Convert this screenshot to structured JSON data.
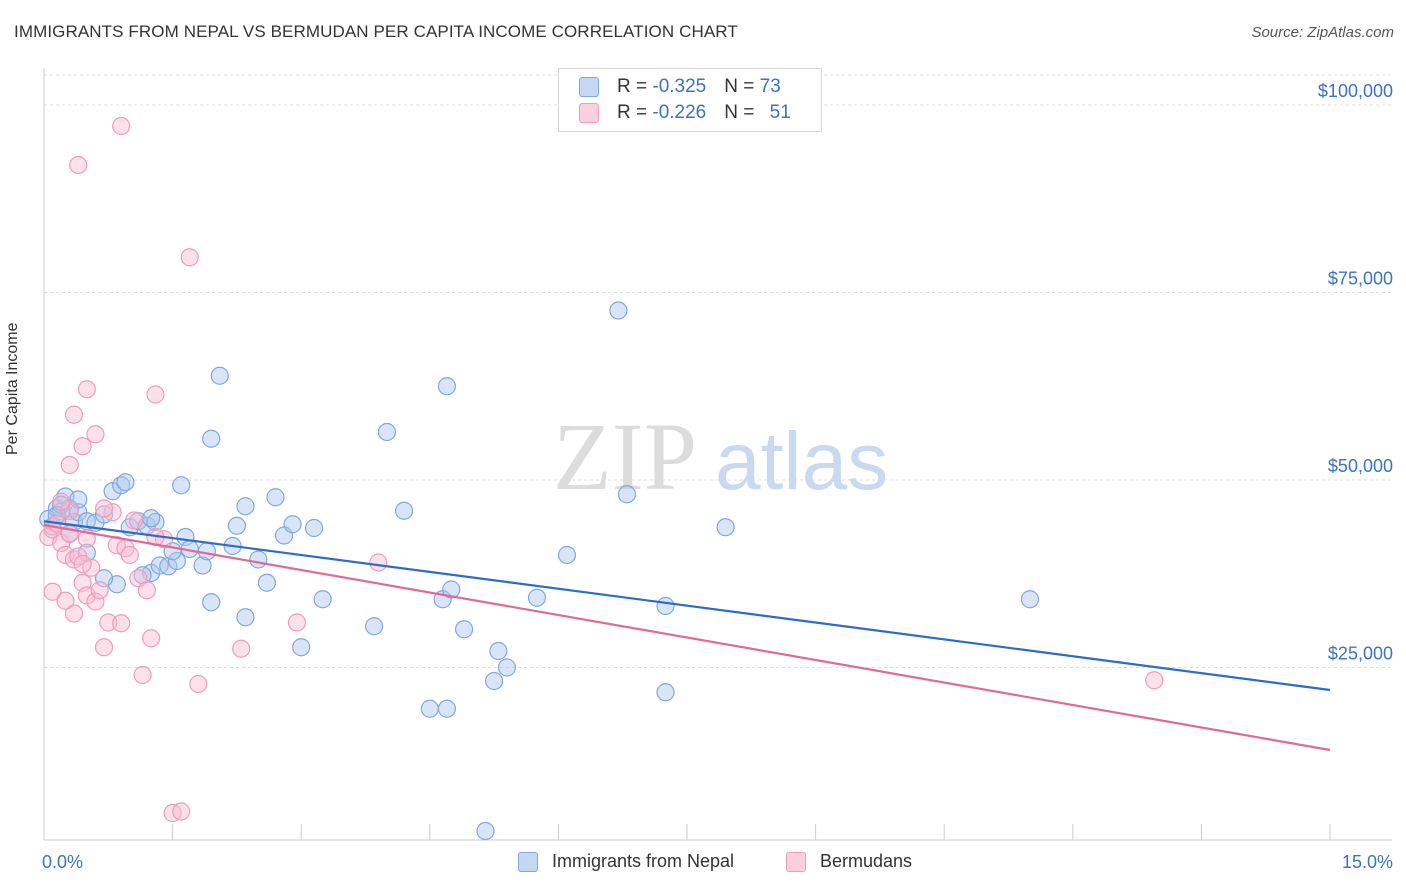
{
  "title": "IMMIGRANTS FROM NEPAL VS BERMUDAN PER CAPITA INCOME CORRELATION CHART",
  "source": "Source: ZipAtlas.com",
  "watermark": {
    "zip": "ZIP",
    "atlas": "atlas"
  },
  "legend": {
    "rows": [
      {
        "r_label": "R = ",
        "r_value": "-0.325",
        "n_label": "N = ",
        "n_value": "73",
        "color": "#7fa8e0"
      },
      {
        "r_label": "R = ",
        "r_value": "-0.226",
        "n_label": "N = ",
        "n_value": "51",
        "color": "#f29bb7"
      }
    ]
  },
  "bottom_legend": [
    {
      "label": "Immigrants from Nepal",
      "color": "#7fa8e0"
    },
    {
      "label": "Bermudans",
      "color": "#f29bb7"
    }
  ],
  "x_axis": {
    "min_label": "0.0%",
    "max_label": "15.0%"
  },
  "chart_data": {
    "type": "scatter",
    "ylabel": "Per Capita Income",
    "xlim": [
      0,
      15
    ],
    "ylim": [
      2000,
      104000
    ],
    "y_ticks": [
      {
        "value": 25000,
        "label": "$25,000"
      },
      {
        "value": 50000,
        "label": "$50,000"
      },
      {
        "value": 75000,
        "label": "$75,000"
      },
      {
        "value": 100000,
        "label": "$100,000"
      }
    ],
    "grid": true,
    "series": [
      {
        "name": "Immigrants from Nepal",
        "color": "#7fa8e0",
        "line_color": "#2b6cc8",
        "trend": {
          "x": [
            0,
            15
          ],
          "y": [
            44500,
            22000
          ]
        },
        "points": [
          [
            0.05,
            44800
          ],
          [
            0.1,
            43800
          ],
          [
            0.15,
            46200
          ],
          [
            0.2,
            45800
          ],
          [
            0.25,
            47800
          ],
          [
            0.3,
            46200
          ],
          [
            0.35,
            44400
          ],
          [
            0.4,
            45700
          ],
          [
            0.5,
            44500
          ],
          [
            0.6,
            44300
          ],
          [
            0.7,
            45400
          ],
          [
            0.8,
            48500
          ],
          [
            0.9,
            49300
          ],
          [
            0.95,
            49700
          ],
          [
            0.85,
            36100
          ],
          [
            0.7,
            36900
          ],
          [
            1.0,
            43700
          ],
          [
            1.1,
            44500
          ],
          [
            1.2,
            43900
          ],
          [
            1.3,
            44400
          ],
          [
            1.25,
            37600
          ],
          [
            1.35,
            38600
          ],
          [
            1.45,
            38500
          ],
          [
            1.55,
            39200
          ],
          [
            1.5,
            40500
          ],
          [
            1.65,
            42400
          ],
          [
            1.6,
            49300
          ],
          [
            1.85,
            38600
          ],
          [
            1.9,
            40500
          ],
          [
            1.95,
            33700
          ],
          [
            1.95,
            55500
          ],
          [
            2.05,
            63900
          ],
          [
            2.2,
            41200
          ],
          [
            2.25,
            43900
          ],
          [
            2.35,
            31700
          ],
          [
            2.35,
            46500
          ],
          [
            2.5,
            39400
          ],
          [
            2.6,
            36300
          ],
          [
            2.7,
            47700
          ],
          [
            2.8,
            42600
          ],
          [
            2.9,
            44100
          ],
          [
            3.0,
            27700
          ],
          [
            3.15,
            43600
          ],
          [
            3.25,
            34100
          ],
          [
            3.85,
            30500
          ],
          [
            4.0,
            56400
          ],
          [
            4.2,
            45900
          ],
          [
            4.5,
            19500
          ],
          [
            4.65,
            34100
          ],
          [
            4.75,
            35400
          ],
          [
            4.7,
            62500
          ],
          [
            4.7,
            19500
          ],
          [
            4.9,
            30100
          ],
          [
            5.25,
            23200
          ],
          [
            5.3,
            27200
          ],
          [
            5.4,
            25000
          ],
          [
            5.75,
            34300
          ],
          [
            6.1,
            40000
          ],
          [
            6.7,
            72600
          ],
          [
            6.8,
            48100
          ],
          [
            7.25,
            33200
          ],
          [
            7.25,
            21700
          ],
          [
            7.95,
            43700
          ],
          [
            11.5,
            34100
          ],
          [
            5.15,
            3200
          ],
          [
            1.15,
            37300
          ],
          [
            1.7,
            40800
          ],
          [
            0.5,
            40300
          ],
          [
            0.3,
            42900
          ],
          [
            0.2,
            46700
          ],
          [
            0.15,
            45300
          ],
          [
            0.4,
            47400
          ],
          [
            1.25,
            44900
          ]
        ]
      },
      {
        "name": "Bermudans",
        "color": "#f29bb7",
        "line_color": "#e06a96",
        "trend": {
          "x": [
            0,
            15
          ],
          "y": [
            44000,
            14000
          ]
        },
        "points": [
          [
            0.05,
            42400
          ],
          [
            0.1,
            43400
          ],
          [
            0.15,
            44200
          ],
          [
            0.2,
            41600
          ],
          [
            0.25,
            40000
          ],
          [
            0.3,
            42800
          ],
          [
            0.35,
            39400
          ],
          [
            0.4,
            39800
          ],
          [
            0.45,
            36300
          ],
          [
            0.5,
            34600
          ],
          [
            0.55,
            38300
          ],
          [
            0.6,
            33800
          ],
          [
            0.65,
            35300
          ],
          [
            0.7,
            27700
          ],
          [
            0.75,
            31000
          ],
          [
            0.8,
            45700
          ],
          [
            0.85,
            41300
          ],
          [
            0.9,
            30900
          ],
          [
            0.95,
            40900
          ],
          [
            1.0,
            40000
          ],
          [
            1.05,
            44600
          ],
          [
            1.1,
            36900
          ],
          [
            1.15,
            24000
          ],
          [
            1.2,
            35300
          ],
          [
            1.25,
            28900
          ],
          [
            1.3,
            61400
          ],
          [
            1.4,
            42100
          ],
          [
            1.5,
            5600
          ],
          [
            1.6,
            5800
          ],
          [
            1.7,
            79700
          ],
          [
            1.8,
            22800
          ],
          [
            2.3,
            27500
          ],
          [
            2.95,
            31000
          ],
          [
            3.9,
            39000
          ],
          [
            0.3,
            52000
          ],
          [
            0.35,
            32200
          ],
          [
            0.1,
            35100
          ],
          [
            0.35,
            58700
          ],
          [
            0.45,
            54500
          ],
          [
            0.5,
            62100
          ],
          [
            0.6,
            56100
          ],
          [
            0.9,
            97200
          ],
          [
            0.4,
            92000
          ],
          [
            0.3,
            45900
          ],
          [
            0.2,
            47100
          ],
          [
            0.45,
            38800
          ],
          [
            0.25,
            33900
          ],
          [
            0.5,
            42200
          ],
          [
            0.7,
            46200
          ],
          [
            1.3,
            42400
          ],
          [
            12.95,
            23300
          ]
        ]
      }
    ]
  }
}
